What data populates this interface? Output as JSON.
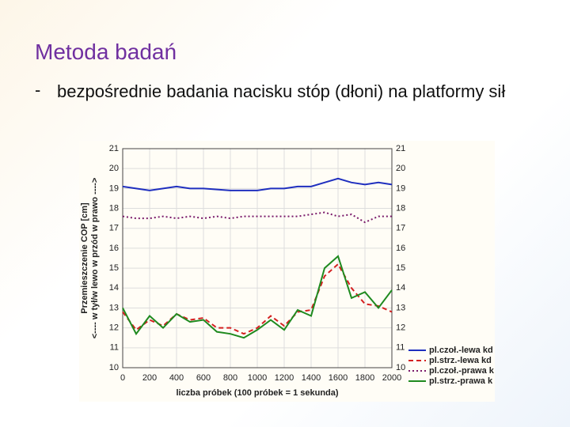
{
  "slide": {
    "title": "Metoda badań",
    "bullet_marker": "-",
    "bullet_text": "bezpośrednie badania nacisku stóp (dłoni) na platformy sił"
  },
  "chart_data": {
    "type": "line",
    "ylabel": [
      "Przemieszczenie COP [cm]",
      "<---- w tył/w lewo w przód w prawo ---->"
    ],
    "xlabel": "liczba próbek (100 próbek = 1 sekunda)",
    "x": [
      0,
      100,
      200,
      300,
      400,
      500,
      600,
      700,
      800,
      900,
      1000,
      1100,
      1200,
      1300,
      1400,
      1500,
      1600,
      1700,
      1800,
      1900,
      2000
    ],
    "xlim": [
      0,
      2000
    ],
    "xticks": [
      0,
      200,
      400,
      600,
      800,
      1000,
      1200,
      1400,
      1600,
      1800,
      2000
    ],
    "ylim": [
      10,
      21
    ],
    "yticks": [
      10,
      11,
      12,
      13,
      14,
      15,
      16,
      17,
      18,
      19,
      20,
      21
    ],
    "grid": true,
    "legend": "bottom-right",
    "series": [
      {
        "name": "pl.czoł.-lewa kd",
        "color": "#1f2fbf",
        "dash": "solid",
        "values": [
          19.1,
          19.0,
          18.9,
          19.0,
          19.1,
          19.0,
          19.0,
          18.95,
          18.9,
          18.9,
          18.9,
          19.0,
          19.0,
          19.1,
          19.1,
          19.3,
          19.5,
          19.3,
          19.2,
          19.3,
          19.2
        ]
      },
      {
        "name": "pl.strz.-lewa kd",
        "color": "#d42020",
        "dash": "dashed",
        "values": [
          12.8,
          11.9,
          12.4,
          12.1,
          12.7,
          12.4,
          12.5,
          12.0,
          12.0,
          11.7,
          12.0,
          12.6,
          12.1,
          12.8,
          12.9,
          14.6,
          15.2,
          14.0,
          13.2,
          13.1,
          12.8
        ]
      },
      {
        "name": "pl.czoł.-prawa k",
        "color": "#7a1a6a",
        "dash": "dotted",
        "values": [
          17.6,
          17.5,
          17.5,
          17.6,
          17.5,
          17.6,
          17.5,
          17.6,
          17.5,
          17.6,
          17.6,
          17.6,
          17.6,
          17.6,
          17.7,
          17.8,
          17.6,
          17.7,
          17.3,
          17.6,
          17.6
        ]
      },
      {
        "name": "pl.strz.-prawa k",
        "color": "#1f8a1f",
        "dash": "solid",
        "values": [
          13.0,
          11.7,
          12.6,
          12.0,
          12.7,
          12.3,
          12.4,
          11.8,
          11.7,
          11.5,
          11.9,
          12.4,
          11.9,
          12.9,
          12.6,
          15.0,
          15.6,
          13.5,
          13.8,
          13.0,
          13.9
        ]
      }
    ]
  }
}
